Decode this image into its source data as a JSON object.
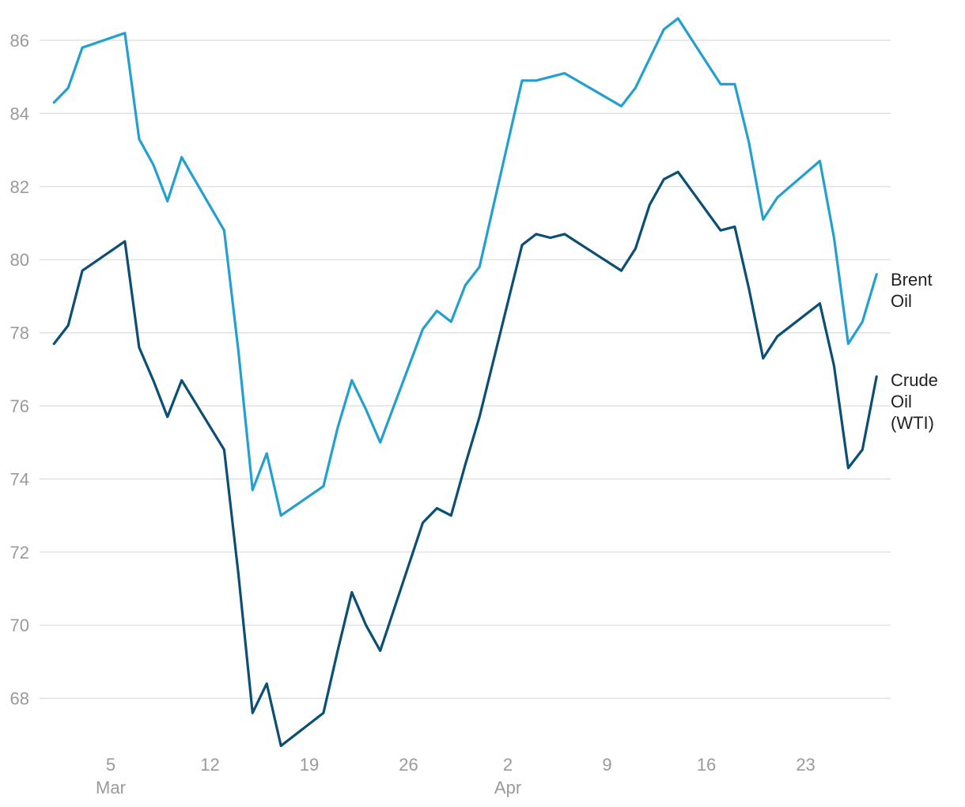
{
  "chart_data": {
    "type": "line",
    "title": "",
    "xlabel": "",
    "ylabel": "",
    "x": [
      "2024-03-01",
      "2024-03-02",
      "2024-03-03",
      "2024-03-06",
      "2024-03-07",
      "2024-03-08",
      "2024-03-09",
      "2024-03-10",
      "2024-03-13",
      "2024-03-14",
      "2024-03-15",
      "2024-03-16",
      "2024-03-17",
      "2024-03-20",
      "2024-03-21",
      "2024-03-22",
      "2024-03-23",
      "2024-03-24",
      "2024-03-27",
      "2024-03-28",
      "2024-03-29",
      "2024-03-30",
      "2024-03-31",
      "2024-04-03",
      "2024-04-04",
      "2024-04-05",
      "2024-04-06",
      "2024-04-10",
      "2024-04-11",
      "2024-04-12",
      "2024-04-13",
      "2024-04-14",
      "2024-04-17",
      "2024-04-18",
      "2024-04-19",
      "2024-04-20",
      "2024-04-21",
      "2024-04-24",
      "2024-04-25",
      "2024-04-26",
      "2024-04-27",
      "2024-04-28"
    ],
    "ylim": [
      66.5,
      87
    ],
    "yticks": [
      68,
      70,
      72,
      74,
      76,
      78,
      80,
      82,
      84,
      86
    ],
    "yticks_label": [
      "68",
      "70",
      "72",
      "74",
      "76",
      "78",
      "80",
      "82",
      "84",
      "86"
    ],
    "xticks": [
      {
        "date": "2024-03-05",
        "label": "5",
        "sublabel": "Mar"
      },
      {
        "date": "2024-03-12",
        "label": "12",
        "sublabel": ""
      },
      {
        "date": "2024-03-19",
        "label": "19",
        "sublabel": ""
      },
      {
        "date": "2024-03-26",
        "label": "26",
        "sublabel": ""
      },
      {
        "date": "2024-04-02",
        "label": "2",
        "sublabel": "Apr"
      },
      {
        "date": "2024-04-09",
        "label": "9",
        "sublabel": ""
      },
      {
        "date": "2024-04-16",
        "label": "16",
        "sublabel": ""
      },
      {
        "date": "2024-04-23",
        "label": "23",
        "sublabel": ""
      }
    ],
    "grid": true,
    "legend": "inline-right",
    "series": [
      {
        "name": "Brent Oil",
        "label_lines": [
          "Brent",
          "Oil"
        ],
        "color": "#23a0d0",
        "points": [
          [
            "2024-03-01",
            84.3
          ],
          [
            "2024-03-02",
            84.7
          ],
          [
            "2024-03-03",
            85.8
          ],
          [
            "2024-03-06",
            86.2
          ],
          [
            "2024-03-07",
            83.3
          ],
          [
            "2024-03-08",
            82.6
          ],
          [
            "2024-03-09",
            81.6
          ],
          [
            "2024-03-10",
            82.8
          ],
          [
            "2024-03-13",
            80.8
          ],
          [
            "2024-03-14",
            77.5
          ],
          [
            "2024-03-15",
            73.7
          ],
          [
            "2024-03-16",
            74.7
          ],
          [
            "2024-03-17",
            73.0
          ],
          [
            "2024-03-20",
            73.8
          ],
          [
            "2024-03-21",
            75.4
          ],
          [
            "2024-03-22",
            76.7
          ],
          [
            "2024-03-23",
            75.9
          ],
          [
            "2024-03-24",
            75.0
          ],
          [
            "2024-03-27",
            78.1
          ],
          [
            "2024-03-28",
            78.6
          ],
          [
            "2024-03-29",
            78.3
          ],
          [
            "2024-03-30",
            79.3
          ],
          [
            "2024-03-31",
            79.8
          ],
          [
            "2024-04-03",
            84.9
          ],
          [
            "2024-04-04",
            84.9
          ],
          [
            "2024-04-05",
            85.0
          ],
          [
            "2024-04-06",
            85.1
          ],
          [
            "2024-04-10",
            84.2
          ],
          [
            "2024-04-11",
            84.7
          ],
          [
            "2024-04-12",
            85.5
          ],
          [
            "2024-04-13",
            86.3
          ],
          [
            "2024-04-14",
            86.6
          ],
          [
            "2024-04-17",
            84.8
          ],
          [
            "2024-04-18",
            84.8
          ],
          [
            "2024-04-19",
            83.2
          ],
          [
            "2024-04-20",
            81.1
          ],
          [
            "2024-04-21",
            81.7
          ],
          [
            "2024-04-24",
            82.7
          ],
          [
            "2024-04-25",
            80.6
          ],
          [
            "2024-04-26",
            77.7
          ],
          [
            "2024-04-27",
            78.3
          ],
          [
            "2024-04-28",
            79.6
          ]
        ]
      },
      {
        "name": "Crude Oil (WTI)",
        "label_lines": [
          "Crude",
          "Oil",
          "(WTI)"
        ],
        "color": "#0b4f74",
        "points": [
          [
            "2024-03-01",
            77.7
          ],
          [
            "2024-03-02",
            78.2
          ],
          [
            "2024-03-03",
            79.7
          ],
          [
            "2024-03-06",
            80.5
          ],
          [
            "2024-03-07",
            77.6
          ],
          [
            "2024-03-08",
            76.7
          ],
          [
            "2024-03-09",
            75.7
          ],
          [
            "2024-03-10",
            76.7
          ],
          [
            "2024-03-13",
            74.8
          ],
          [
            "2024-03-14",
            71.4
          ],
          [
            "2024-03-15",
            67.6
          ],
          [
            "2024-03-16",
            68.4
          ],
          [
            "2024-03-17",
            66.7
          ],
          [
            "2024-03-20",
            67.6
          ],
          [
            "2024-03-21",
            69.3
          ],
          [
            "2024-03-22",
            70.9
          ],
          [
            "2024-03-23",
            70.0
          ],
          [
            "2024-03-24",
            69.3
          ],
          [
            "2024-03-27",
            72.8
          ],
          [
            "2024-03-28",
            73.2
          ],
          [
            "2024-03-29",
            73.0
          ],
          [
            "2024-03-30",
            74.4
          ],
          [
            "2024-03-31",
            75.7
          ],
          [
            "2024-04-03",
            80.4
          ],
          [
            "2024-04-04",
            80.7
          ],
          [
            "2024-04-05",
            80.6
          ],
          [
            "2024-04-06",
            80.7
          ],
          [
            "2024-04-10",
            79.7
          ],
          [
            "2024-04-11",
            80.3
          ],
          [
            "2024-04-12",
            81.5
          ],
          [
            "2024-04-13",
            82.2
          ],
          [
            "2024-04-14",
            82.4
          ],
          [
            "2024-04-17",
            80.8
          ],
          [
            "2024-04-18",
            80.9
          ],
          [
            "2024-04-19",
            79.2
          ],
          [
            "2024-04-20",
            77.3
          ],
          [
            "2024-04-21",
            77.9
          ],
          [
            "2024-04-24",
            78.8
          ],
          [
            "2024-04-25",
            77.1
          ],
          [
            "2024-04-26",
            74.3
          ],
          [
            "2024-04-27",
            74.8
          ],
          [
            "2024-04-28",
            76.8
          ]
        ]
      }
    ]
  }
}
